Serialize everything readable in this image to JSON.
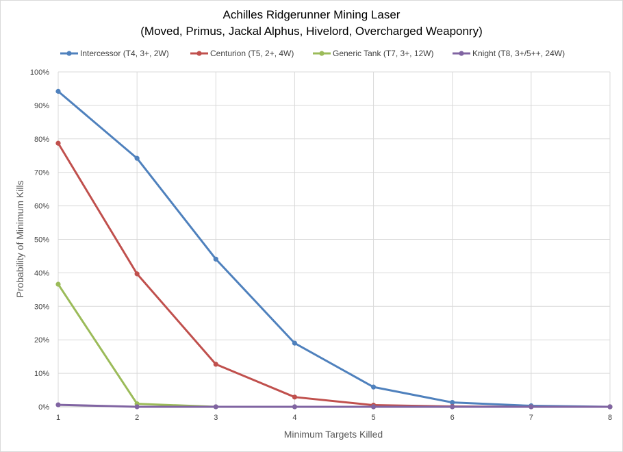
{
  "chart_data": {
    "type": "line",
    "title": "Achilles Ridgerunner Mining Laser",
    "subtitle": "(Moved, Primus, Jackal Alphus, Hivelord, Overcharged Weaponry)",
    "xlabel": "Minimum Targets Killed",
    "ylabel": "Probability of Minimum Kills",
    "x": [
      1,
      2,
      3,
      4,
      5,
      6,
      7,
      8
    ],
    "xlim": [
      1,
      8
    ],
    "ylim": [
      0,
      100
    ],
    "y_ticks": [
      0,
      10,
      20,
      30,
      40,
      50,
      60,
      70,
      80,
      90,
      100
    ],
    "y_unit": "%",
    "grid": true,
    "legend_position": "top",
    "series": [
      {
        "name": "Intercessor (T4, 3+, 2W)",
        "color": "#4f81bd",
        "values": [
          94.2,
          74.2,
          44.1,
          19.0,
          5.9,
          1.3,
          0.3,
          0.0
        ]
      },
      {
        "name": "Centurion (T5, 2+, 4W)",
        "color": "#c0504d",
        "values": [
          78.7,
          39.7,
          12.7,
          2.9,
          0.5,
          0.1,
          0.0,
          0.0
        ]
      },
      {
        "name": "Generic Tank (T7, 3+, 12W)",
        "color": "#9bbb59",
        "values": [
          36.6,
          0.9,
          0.0,
          0.0,
          0.0,
          0.0,
          0.0,
          0.0
        ]
      },
      {
        "name": "Knight (T8, 3+/5++, 24W)",
        "color": "#8064a2",
        "values": [
          0.6,
          0.0,
          0.0,
          0.0,
          0.0,
          0.0,
          0.0,
          0.0
        ]
      }
    ]
  }
}
